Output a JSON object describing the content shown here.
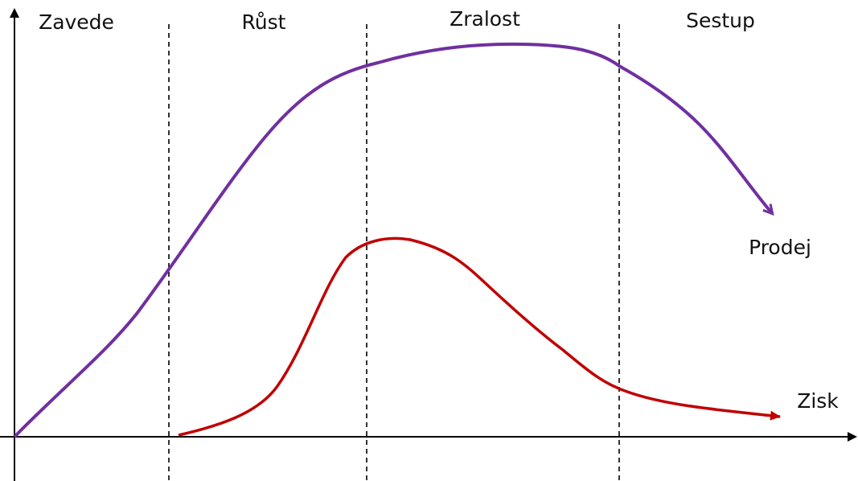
{
  "stages": [
    "Zavede",
    "Růst",
    "Zralost",
    "Sestup"
  ],
  "curves": {
    "sales": "Prodej",
    "profit": "Zisk"
  }
}
